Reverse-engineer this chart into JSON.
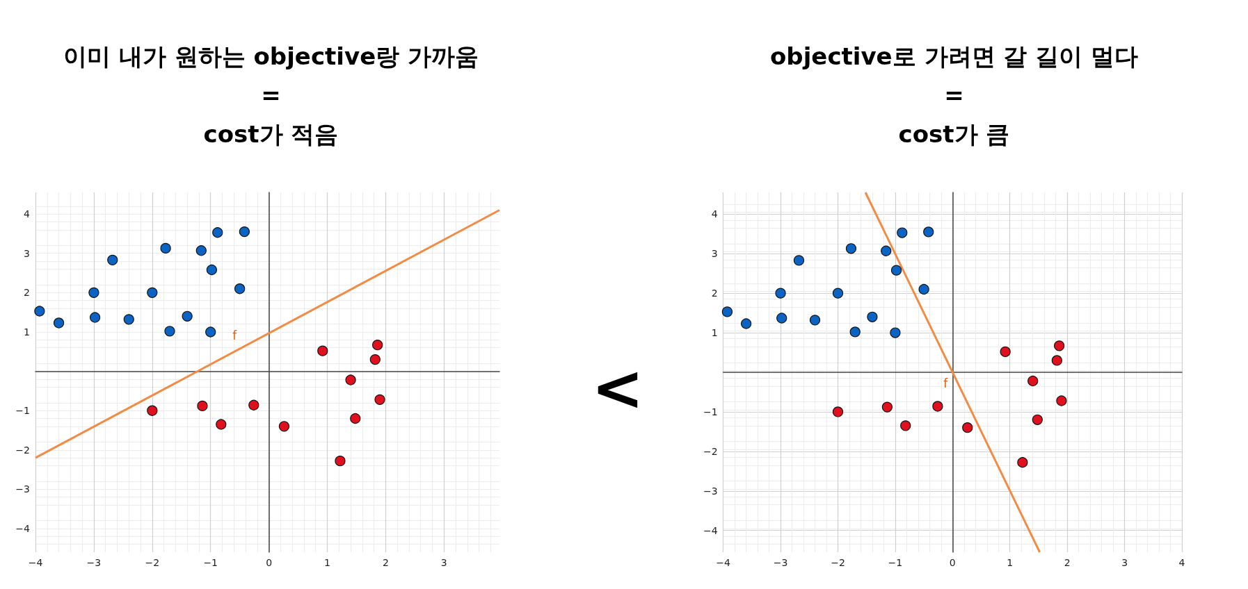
{
  "chart_data": [
    {
      "type": "scatter",
      "title": "이미 내가 원하는 objective랑 가까움\n=\ncost가 적음",
      "xlim": [
        -4,
        3.95
      ],
      "ylim": [
        -4.6,
        4.55
      ],
      "xticks": [
        -4,
        -3,
        -2,
        -1,
        0,
        1,
        2,
        3
      ],
      "yticks": [
        -4,
        -3,
        -2,
        -1,
        1,
        2,
        3,
        4
      ],
      "grid": true,
      "marker": "circle",
      "series": [
        {
          "color": "#0b63c4",
          "x": [
            -3.93,
            -3.6,
            -3,
            -2.98,
            -2.68,
            -2.4,
            -2,
            -1.77,
            -1.7,
            -1.4,
            -1.16,
            -1,
            -0.98,
            -0.88,
            -0.5,
            -0.42
          ],
          "values": [
            1.53,
            1.23,
            2,
            1.37,
            2.83,
            1.32,
            2,
            3.13,
            1.02,
            1.4,
            3.07,
            1,
            2.58,
            3.53,
            2.1,
            3.55
          ]
        },
        {
          "color": "#e0101f",
          "x": [
            -2,
            -1.14,
            -0.82,
            -0.26,
            0.26,
            0.92,
            1.22,
            1.4,
            1.48,
            1.82,
            1.86,
            1.9
          ],
          "values": [
            -1,
            -0.88,
            -1.35,
            -0.86,
            -1.4,
            0.52,
            -2.28,
            -0.22,
            -1.2,
            0.3,
            0.67,
            -0.72
          ]
        },
        {
          "type": "line",
          "name": "f",
          "marker": "none",
          "color": "#f28c45",
          "x": [
            -4,
            3.95
          ],
          "values": [
            -2.2,
            4.1
          ]
        }
      ]
    },
    {
      "type": "other",
      "annotations": [
        "<"
      ]
    },
    {
      "type": "scatter",
      "title": "objective로 가려면 갈 길이 멀다\n=\ncost가 큼",
      "xlim": [
        -4,
        4
      ],
      "ylim": [
        -4.55,
        4.55
      ],
      "xticks": [
        -4,
        -3,
        -2,
        -1,
        0,
        1,
        2,
        3,
        4
      ],
      "yticks": [
        -4,
        -3,
        -2,
        -1,
        1,
        2,
        3,
        4
      ],
      "grid": true,
      "marker": "circle",
      "series": [
        {
          "color": "#0b63c4",
          "x": [
            -3.93,
            -3.6,
            -3,
            -2.98,
            -2.68,
            -2.4,
            -2,
            -1.77,
            -1.7,
            -1.4,
            -1.16,
            -1,
            -0.98,
            -0.88,
            -0.5,
            -0.42
          ],
          "values": [
            1.53,
            1.23,
            2,
            1.37,
            2.83,
            1.32,
            2,
            3.13,
            1.02,
            1.4,
            3.07,
            1,
            2.58,
            3.53,
            2.1,
            3.55
          ]
        },
        {
          "color": "#e0101f",
          "x": [
            -2,
            -1.14,
            -0.82,
            -0.26,
            0.26,
            0.92,
            1.22,
            1.4,
            1.48,
            1.82,
            1.86,
            1.9
          ],
          "values": [
            -1,
            -0.88,
            -1.35,
            -0.86,
            -1.4,
            0.52,
            -2.28,
            -0.22,
            -1.2,
            0.3,
            0.67,
            -0.72
          ]
        },
        {
          "type": "line",
          "name": "f",
          "marker": "none",
          "color": "#f28c45",
          "x": [
            -1.52,
            1.52
          ],
          "values": [
            4.55,
            -4.55
          ]
        }
      ]
    }
  ]
}
